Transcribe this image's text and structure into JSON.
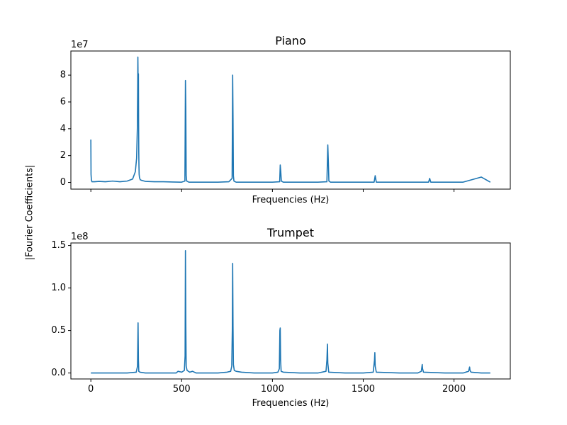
{
  "figure": {
    "shared_ylabel": "|Fourier Coefficients|",
    "colors": {
      "line": "#1f77b4",
      "axes": "#000000",
      "background": "#ffffff"
    }
  },
  "chart_data": [
    {
      "type": "line",
      "title": "Piano",
      "xlabel": "Frequencies (Hz)",
      "ylabel": "",
      "offset_label": "1e7",
      "y_scale_factor": 10000000,
      "xlim": [
        -110,
        2310
      ],
      "ylim": [
        -0.5,
        9.8
      ],
      "grid": false,
      "x_ticks": [
        0,
        500,
        1000,
        1500,
        2000
      ],
      "x_tick_labels_visible": false,
      "y_ticks": [
        0,
        2,
        4,
        6,
        8
      ],
      "y_tick_labels": [
        "0",
        "2",
        "4",
        "6",
        "8"
      ],
      "series": [
        {
          "x": [
            0,
            1,
            3,
            6,
            20,
            45,
            80,
            120,
            160,
            200,
            230,
            245,
            252,
            256,
            258,
            259,
            260,
            261,
            262,
            263,
            264,
            265,
            266,
            268,
            272,
            280,
            300,
            350,
            400,
            450,
            500,
            518,
            521,
            523,
            525,
            528,
            540,
            600,
            700,
            760,
            778,
            781,
            783,
            785,
            788,
            800,
            900,
            1000,
            1040,
            1043,
            1046,
            1049,
            1060,
            1150,
            1250,
            1300,
            1305,
            1308,
            1311,
            1320,
            1400,
            1500,
            1560,
            1566,
            1572,
            1600,
            1700,
            1800,
            1860,
            1866,
            1872,
            1950,
            2050,
            2150,
            2200
          ],
          "y": [
            3.2,
            0.6,
            0.2,
            0.05,
            0.05,
            0.08,
            0.05,
            0.1,
            0.05,
            0.1,
            0.25,
            0.8,
            1.8,
            4.0,
            7.2,
            9.35,
            8.0,
            6.2,
            8.1,
            4.5,
            2.2,
            1.2,
            0.6,
            0.35,
            0.2,
            0.15,
            0.08,
            0.05,
            0.05,
            0.03,
            0.02,
            0.1,
            7.6,
            5.5,
            0.5,
            0.1,
            0.02,
            0.02,
            0.02,
            0.05,
            0.3,
            8.0,
            4.8,
            0.5,
            0.1,
            0.02,
            0.02,
            0.02,
            0.05,
            1.3,
            0.8,
            0.1,
            0.02,
            0.02,
            0.02,
            0.05,
            2.8,
            1.5,
            0.1,
            0.02,
            0.02,
            0.02,
            0.02,
            0.5,
            0.02,
            0.02,
            0.02,
            0.02,
            0.02,
            0.3,
            0.02,
            0.02,
            0.02,
            0.4,
            0.02
          ]
        }
      ]
    },
    {
      "type": "line",
      "title": "Trumpet",
      "xlabel": "Frequencies (Hz)",
      "ylabel": "",
      "offset_label": "1e8",
      "y_scale_factor": 100000000,
      "xlim": [
        -110,
        2310
      ],
      "ylim": [
        -0.07,
        1.53
      ],
      "grid": false,
      "x_ticks": [
        0,
        500,
        1000,
        1500,
        2000
      ],
      "x_tick_labels_visible": true,
      "x_tick_labels": [
        "0",
        "500",
        "1000",
        "1500",
        "2000"
      ],
      "y_ticks": [
        0.0,
        0.5,
        1.0,
        1.5
      ],
      "y_tick_labels": [
        "0.0",
        "0.5",
        "1.0",
        "1.5"
      ],
      "series": [
        {
          "x": [
            0,
            100,
            200,
            250,
            257,
            260,
            262,
            264,
            270,
            300,
            400,
            470,
            480,
            500,
            515,
            519,
            521,
            523,
            525,
            530,
            545,
            560,
            580,
            700,
            750,
            770,
            776,
            779,
            781,
            783,
            785,
            790,
            800,
            830,
            900,
            1000,
            1030,
            1038,
            1041,
            1043,
            1045,
            1048,
            1060,
            1150,
            1250,
            1295,
            1300,
            1303,
            1305,
            1310,
            1400,
            1500,
            1555,
            1562,
            1564,
            1566,
            1572,
            1700,
            1800,
            1820,
            1825,
            1827,
            1832,
            1950,
            2050,
            2080,
            2086,
            2088,
            2094,
            2150,
            2200
          ],
          "y": [
            0.0,
            0.0,
            0.0,
            0.01,
            0.08,
            0.59,
            0.15,
            0.02,
            0.01,
            0.0,
            0.0,
            0.0,
            0.02,
            0.01,
            0.03,
            0.2,
            1.44,
            0.6,
            0.08,
            0.03,
            0.01,
            0.02,
            0.0,
            0.0,
            0.01,
            0.02,
            0.08,
            0.5,
            1.29,
            0.55,
            0.1,
            0.03,
            0.02,
            0.01,
            0.0,
            0.0,
            0.01,
            0.05,
            0.5,
            0.53,
            0.15,
            0.02,
            0.01,
            0.0,
            0.0,
            0.02,
            0.15,
            0.34,
            0.12,
            0.01,
            0.0,
            0.0,
            0.01,
            0.15,
            0.24,
            0.08,
            0.01,
            0.0,
            0.0,
            0.02,
            0.1,
            0.05,
            0.01,
            0.0,
            0.0,
            0.02,
            0.07,
            0.03,
            0.01,
            0.0,
            0.0
          ]
        }
      ]
    }
  ]
}
